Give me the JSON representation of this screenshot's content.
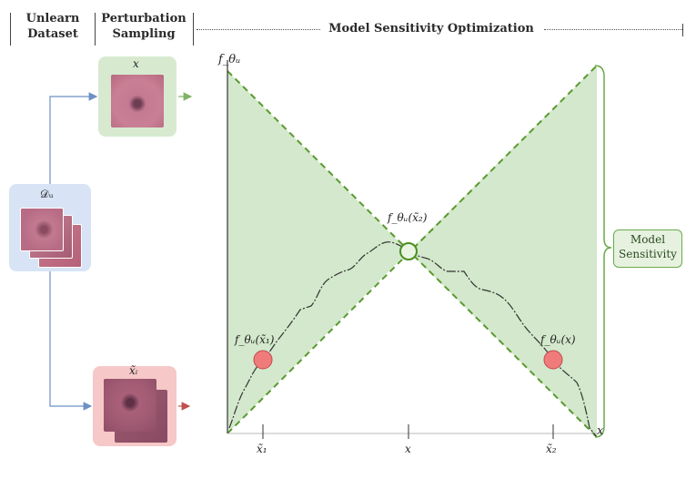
{
  "header": {
    "col1_line1": "Unlearn",
    "col1_line2": "Dataset",
    "col2_line1": "Perturbation",
    "col2_line2": "Sampling",
    "col3": "Model Sensitivity Optimization"
  },
  "left": {
    "dataset_label": "𝒟ᵤ",
    "x_label": "x",
    "xtilde_label": "x̃ᵢ"
  },
  "plot": {
    "y_axis_label": "f_θᵤ",
    "x_axis_label": "x",
    "tick_x1": "x̃₁",
    "tick_x": "x",
    "tick_x2": "x̃₂",
    "point_center": "f_θᵤ(x̃₂)",
    "point_left": "f_θᵤ(x̃₁)",
    "point_right": "f_θᵤ(x)",
    "sensitivity_line1": "Model",
    "sensitivity_line2": "Sensitivity"
  },
  "colors": {
    "green_fill": "#d3e8cc",
    "green_line": "#5a9a2e",
    "red_point": "#ef7b7b",
    "blue_arrow": "#6d8fc4",
    "red_arrow": "#c0504d",
    "dataset_panel": "#d8e4f5",
    "x_panel": "#d7ead0",
    "xtilde_panel": "#f6c8c8"
  }
}
